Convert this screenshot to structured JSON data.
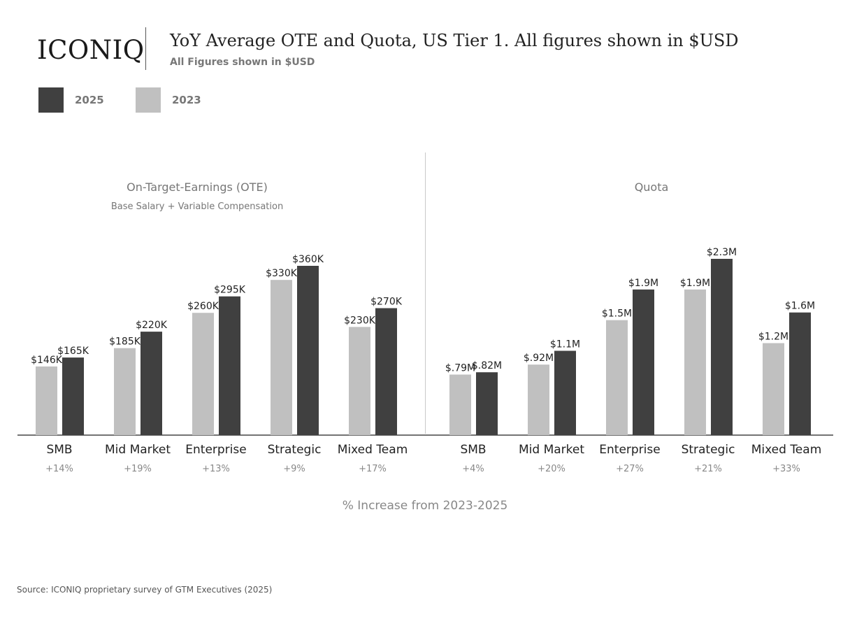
{
  "header": {
    "logo_text": "ICONIQ",
    "title": "YoY Average OTE and Quota, US Tier 1. All figures shown in $USD",
    "subtitle": "All Figures shown in $USD"
  },
  "colors": {
    "2025": "#404040",
    "2023": "#c0c0c0",
    "axis": "#222222"
  },
  "legend": [
    {
      "label": "2025",
      "color": "#404040"
    },
    {
      "label": "2023",
      "color": "#c0c0c0"
    }
  ],
  "footer": {
    "x_note": "% Increase from 2023-2025",
    "source": "Source: ICONIQ proprietary survey of GTM Executives (2025)"
  },
  "chart_data": [
    {
      "type": "bar",
      "title": "On-Target-Earnings (OTE)",
      "subtitle": "Base Salary + Variable Compensation",
      "categories": [
        "SMB",
        "Mid Market",
        "Enterprise",
        "Strategic",
        "Mixed Team"
      ],
      "pct_increase": [
        "+14%",
        "+19%",
        "+13%",
        "+9%",
        "+17%"
      ],
      "series": [
        {
          "name": "2023",
          "values": [
            146000,
            185000,
            260000,
            330000,
            230000
          ],
          "labels": [
            "$146K",
            "$185K",
            "$260K",
            "$330K",
            "$230K"
          ]
        },
        {
          "name": "2025",
          "values": [
            165000,
            220000,
            295000,
            360000,
            270000
          ],
          "labels": [
            "$165K",
            "$220K",
            "$295K",
            "$360K",
            "$270K"
          ]
        }
      ],
      "ylim": [
        0,
        360000
      ]
    },
    {
      "type": "bar",
      "title": "Quota",
      "subtitle": "",
      "categories": [
        "SMB",
        "Mid Market",
        "Enterprise",
        "Strategic",
        "Mixed Team"
      ],
      "pct_increase": [
        "+4%",
        "+20%",
        "+27%",
        "+21%",
        "+33%"
      ],
      "series": [
        {
          "name": "2023",
          "values": [
            790000,
            920000,
            1500000,
            1900000,
            1200000
          ],
          "labels": [
            "$.79M",
            "$.92M",
            "$1.5M",
            "$1.9M",
            "$1.2M"
          ]
        },
        {
          "name": "2025",
          "values": [
            820000,
            1100000,
            1900000,
            2300000,
            1600000
          ],
          "labels": [
            "$.82M",
            "$1.1M",
            "$1.9M",
            "$2.3M",
            "$1.6M"
          ]
        }
      ],
      "ylim": [
        0,
        2300000
      ]
    }
  ]
}
